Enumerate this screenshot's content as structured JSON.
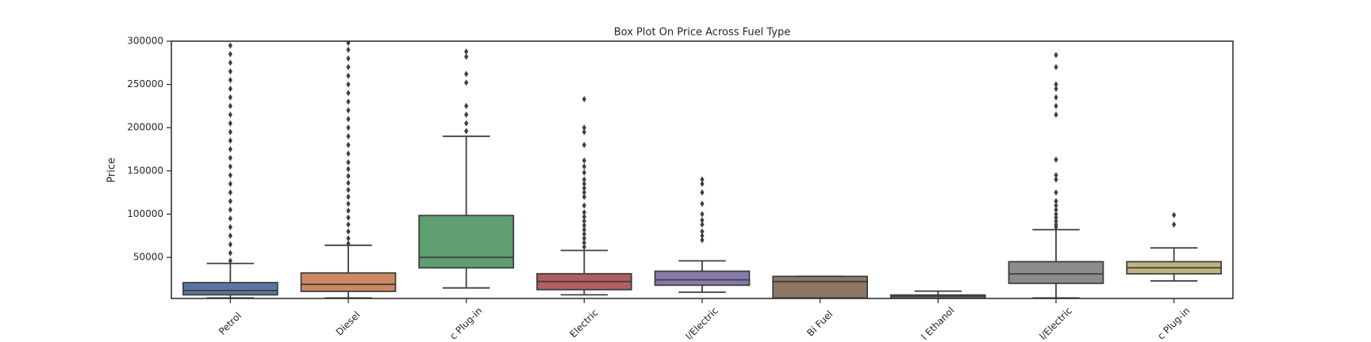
{
  "chart_data": {
    "type": "box",
    "title": "Box Plot On Price Across Fuel Type",
    "y_label": "Price",
    "categories": [
      "Petrol",
      "Diesel",
      "c Plug-in",
      "Electric",
      "l/Electric",
      "Bi Fuel",
      "l Ethanol",
      "l/Electric",
      "c Plug-in"
    ],
    "colors": [
      "#5975a4",
      "#cc8963",
      "#5f9e6e",
      "#b55d60",
      "#857aab",
      "#8d7866",
      "#d095bf",
      "#8c8c8c",
      "#c1b37f"
    ],
    "boxes": [
      {
        "whislo": 3000,
        "q1": 6700,
        "med": 11700,
        "q3": 20800,
        "whishi": 43000,
        "fliers": [
          46000,
          55000,
          65000,
          75000,
          85000,
          95000,
          105000,
          115000,
          125000,
          135000,
          145000,
          155000,
          165000,
          175000,
          185000,
          195000,
          205000,
          215000,
          225000,
          235000,
          245000,
          255000,
          265000,
          275000,
          285000,
          295000
        ]
      },
      {
        "whislo": 3000,
        "q1": 10700,
        "med": 18800,
        "q3": 32000,
        "whishi": 64000,
        "fliers": [
          66000,
          72000,
          80000,
          88000,
          96000,
          104000,
          112000,
          120000,
          128000,
          136000,
          144000,
          152000,
          160000,
          170000,
          180000,
          190000,
          200000,
          210000,
          220000,
          230000,
          240000,
          250000,
          260000,
          270000,
          280000,
          290000,
          298000
        ]
      },
      {
        "whislo": 14700,
        "q1": 37900,
        "med": 50000,
        "q3": 98400,
        "whishi": 190000,
        "fliers": [
          196000,
          205000,
          215000,
          225000,
          252000,
          262000,
          282000,
          288000
        ]
      },
      {
        "whislo": 6700,
        "q1": 12700,
        "med": 22000,
        "q3": 31100,
        "whishi": 58000,
        "fliers": [
          62000,
          67000,
          72000,
          77000,
          82000,
          87000,
          92000,
          97000,
          102000,
          110000,
          120000,
          125000,
          130000,
          135000,
          140000,
          148000,
          155000,
          162000,
          180000,
          195000,
          200000,
          233000
        ]
      },
      {
        "whislo": 9700,
        "q1": 17800,
        "med": 24000,
        "q3": 34000,
        "whishi": 46000,
        "fliers": [
          70000,
          75000,
          80000,
          88000,
          93000,
          100000,
          112000,
          125000,
          135000,
          140000
        ]
      },
      {
        "whislo": 3000,
        "q1": 3000,
        "med": 22000,
        "q3": 28000,
        "whishi": 28000,
        "fliers": []
      },
      {
        "whislo": 3000,
        "q1": 3000,
        "med": 5000,
        "q3": 6500,
        "whishi": 11000,
        "fliers": []
      },
      {
        "whislo": 3000,
        "q1": 20000,
        "med": 31000,
        "q3": 45000,
        "whishi": 82000,
        "fliers": [
          85000,
          88000,
          92000,
          96000,
          100000,
          105000,
          110000,
          115000,
          125000,
          140000,
          145000,
          163000,
          215000,
          225000,
          235000,
          245000,
          250000,
          270000,
          284000
        ]
      },
      {
        "whislo": 22800,
        "q1": 31000,
        "med": 38000,
        "q3": 45000,
        "whishi": 61000,
        "fliers": [
          88000,
          99000
        ]
      }
    ],
    "ylim": [
      2500,
      300000
    ],
    "yticks": [
      50000,
      100000,
      150000,
      200000,
      250000,
      300000
    ]
  }
}
